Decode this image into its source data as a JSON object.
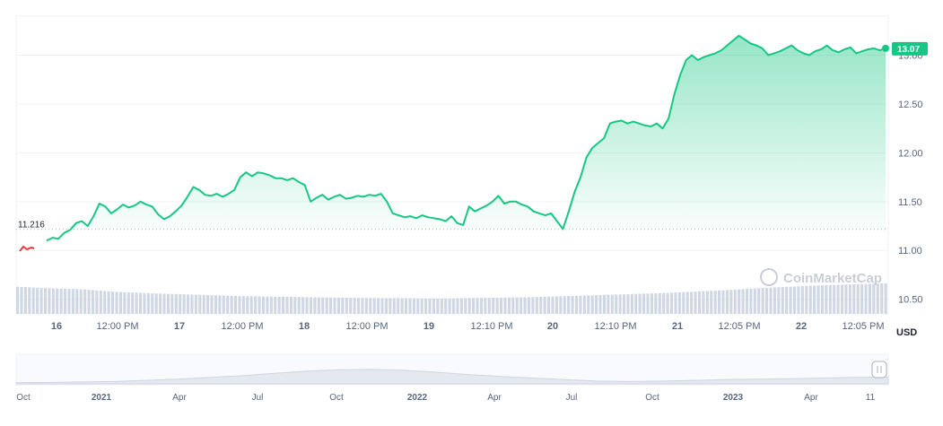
{
  "chart_data": {
    "type": "area",
    "currency": "USD",
    "watermark": "CoinMarketCap",
    "baseline_value": 11.216,
    "baseline_label": "11.216",
    "last_value_label": "13.07",
    "y_axis": {
      "min": 10.35,
      "max": 13.4,
      "ticks": [
        10.5,
        11.0,
        11.5,
        12.0,
        12.5,
        13.0
      ],
      "tick_labels": [
        "10.50",
        "11.00",
        "11.50",
        "12.00",
        "12.50",
        "13.00"
      ]
    },
    "x_axis": {
      "tick_labels": [
        "16",
        "12:00 PM",
        "17",
        "12:00 PM",
        "18",
        "12:00 PM",
        "19",
        "12:10 PM",
        "20",
        "12:10 PM",
        "21",
        "12:05 PM",
        "22",
        "12:05 PM"
      ],
      "bold": [
        true,
        false,
        true,
        false,
        true,
        false,
        true,
        false,
        true,
        false,
        true,
        false,
        true,
        false
      ]
    },
    "price_series": {
      "x": [
        0,
        0.05,
        0.1,
        0.15,
        0.2,
        0.25,
        0.3,
        0.35,
        0.4,
        0.45,
        0.5,
        0.55,
        0.6,
        0.65,
        0.7,
        0.75,
        0.8,
        0.85,
        0.9,
        0.95,
        1.0,
        1.05,
        1.1,
        1.15,
        1.2,
        1.25,
        1.3,
        1.35,
        1.4,
        1.45,
        1.5,
        1.55,
        1.6,
        1.65,
        1.7,
        1.75,
        1.8,
        1.85,
        1.9,
        1.95,
        2.0,
        2.05,
        2.1,
        2.15,
        2.2,
        2.25,
        2.3,
        2.35,
        2.4,
        2.45,
        2.5,
        2.55,
        2.6,
        2.65,
        2.7,
        2.75,
        2.8,
        2.85,
        2.9,
        2.95,
        3.0,
        3.05,
        3.1,
        3.15,
        3.2,
        3.25,
        3.3,
        3.35,
        3.4,
        3.45,
        3.5,
        3.55,
        3.6,
        3.65,
        3.7,
        3.75,
        3.8,
        3.85,
        3.9,
        3.95,
        4.0,
        4.05,
        4.1,
        4.15,
        4.2,
        4.25,
        4.3,
        4.35,
        4.4,
        4.45,
        4.5,
        4.55,
        4.6,
        4.65,
        4.7,
        4.75,
        4.8,
        4.85,
        4.9,
        4.95,
        5.0,
        5.05,
        5.1,
        5.15,
        5.2,
        5.25,
        5.3,
        5.35,
        5.4,
        5.45,
        5.5,
        5.55,
        5.6,
        5.65,
        5.7,
        5.75,
        5.8,
        5.85,
        5.9,
        5.95,
        6.0,
        6.05,
        6.1,
        6.15,
        6.2,
        6.25,
        6.3,
        6.35,
        6.4,
        6.45,
        6.5,
        6.55,
        6.6,
        6.65,
        6.7,
        6.75,
        6.8,
        6.85,
        6.9,
        6.95,
        7.0,
        7.05,
        7.1,
        7.15
      ],
      "y": [
        11.1,
        11.13,
        11.12,
        11.18,
        11.21,
        11.28,
        11.3,
        11.25,
        11.35,
        11.48,
        11.45,
        11.38,
        11.42,
        11.47,
        11.44,
        11.46,
        11.5,
        11.47,
        11.45,
        11.37,
        11.32,
        11.35,
        11.4,
        11.46,
        11.55,
        11.65,
        11.62,
        11.57,
        11.56,
        11.58,
        11.55,
        11.58,
        11.62,
        11.75,
        11.8,
        11.76,
        11.8,
        11.79,
        11.77,
        11.74,
        11.74,
        11.72,
        11.74,
        11.7,
        11.67,
        11.5,
        11.54,
        11.57,
        11.52,
        11.55,
        11.57,
        11.53,
        11.54,
        11.56,
        11.55,
        11.57,
        11.56,
        11.58,
        11.5,
        11.38,
        11.36,
        11.34,
        11.35,
        11.33,
        11.36,
        11.34,
        11.33,
        11.32,
        11.3,
        11.35,
        11.28,
        11.26,
        11.45,
        11.4,
        11.43,
        11.46,
        11.5,
        11.56,
        11.48,
        11.5,
        11.5,
        11.47,
        11.45,
        11.4,
        11.38,
        11.36,
        11.38,
        11.3,
        11.22,
        11.4,
        11.6,
        11.75,
        11.95,
        12.05,
        12.1,
        12.15,
        12.3,
        12.32,
        12.33,
        12.3,
        12.32,
        12.3,
        12.28,
        12.27,
        12.3,
        12.25,
        12.35,
        12.6,
        12.8,
        12.95,
        13.0,
        12.95,
        12.98,
        13.0,
        13.02,
        13.05,
        13.1,
        13.15,
        13.2,
        13.16,
        13.12,
        13.1,
        13.07,
        13.0,
        13.02,
        13.04,
        13.07,
        13.1,
        13.05,
        13.02,
        13.0,
        13.04,
        13.06,
        13.1,
        13.05,
        13.03,
        13.06,
        13.08,
        13.02,
        13.04,
        13.06,
        13.07,
        13.05,
        13.07
      ]
    },
    "volume_series": [
      0.55,
      0.52,
      0.5,
      0.45,
      0.42,
      0.4,
      0.38,
      0.36,
      0.35,
      0.34,
      0.33,
      0.32,
      0.32,
      0.31,
      0.32,
      0.33,
      0.34,
      0.36,
      0.38,
      0.4,
      0.42,
      0.45,
      0.48,
      0.52,
      0.55,
      0.58,
      0.6,
      0.62
    ],
    "navigator": {
      "labels": [
        "Oct",
        "2021",
        "Apr",
        "Jul",
        "Oct",
        "2022",
        "Apr",
        "Jul",
        "Oct",
        "2023",
        "Apr",
        "11"
      ],
      "bold": [
        false,
        true,
        false,
        false,
        false,
        true,
        false,
        false,
        false,
        true,
        false,
        false
      ],
      "profile": [
        0.05,
        0.06,
        0.08,
        0.1,
        0.15,
        0.2,
        0.28,
        0.35,
        0.45,
        0.55,
        0.6,
        0.62,
        0.58,
        0.5,
        0.4,
        0.32,
        0.25,
        0.18,
        0.12,
        0.1,
        0.12,
        0.15,
        0.18,
        0.2,
        0.22,
        0.25,
        0.28,
        0.3
      ]
    },
    "colors": {
      "line": "#16c784",
      "negative_line": "#ea3943",
      "fill_top": "#16c784",
      "volume": "#cfd6e4",
      "grid": "#eff2f5",
      "baseline": "#a6b0c3",
      "badge": "#16c784"
    }
  }
}
